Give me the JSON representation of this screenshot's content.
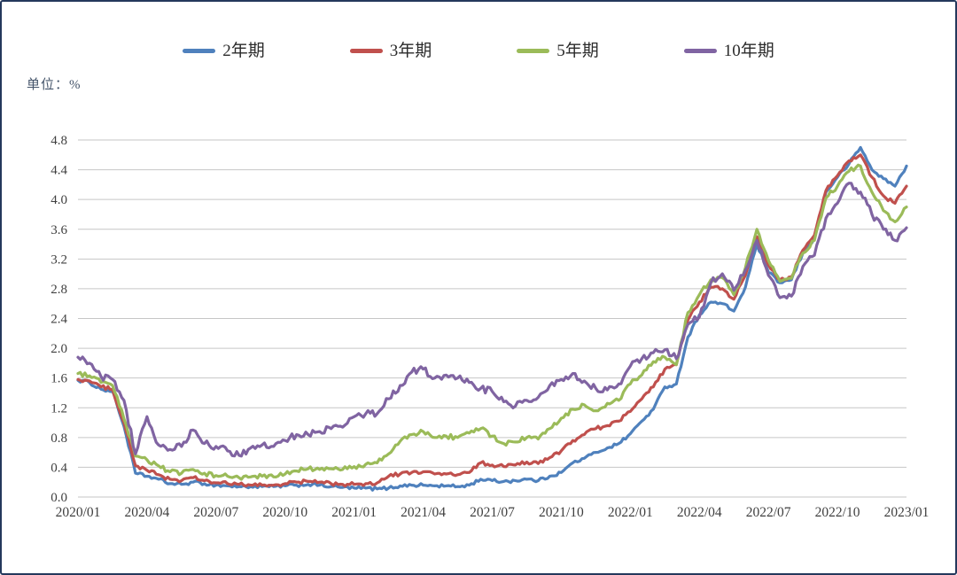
{
  "unit_label": "单位：%",
  "frame_border_color": "#24385c",
  "chart_data": {
    "type": "line",
    "title": "",
    "unit_annotation": "单位：%",
    "legend_position": "top",
    "grid": "horizontal",
    "x_unit": "months since 2020/01",
    "x_start": 0,
    "x_step": 0.5,
    "xlim": [
      0,
      36
    ],
    "ylim": [
      0,
      4.8
    ],
    "y_ticks": [
      0.0,
      0.4,
      0.8,
      1.2,
      1.6,
      2.0,
      2.4,
      2.8,
      3.2,
      3.6,
      4.0,
      4.4,
      4.8
    ],
    "x_tick_positions": [
      0,
      3,
      6,
      9,
      12,
      15,
      18,
      21,
      24,
      27,
      30,
      33,
      36
    ],
    "x_tick_labels": [
      "2020/01",
      "2020/04",
      "2020/07",
      "2020/10",
      "2021/01",
      "2021/04",
      "2021/07",
      "2021/10",
      "2022/01",
      "2022/04",
      "2022/07",
      "2022/10",
      "2023/01"
    ],
    "series": [
      {
        "name": "2年期",
        "color": "#4F81BD",
        "values": [
          1.57,
          1.54,
          1.45,
          1.42,
          0.95,
          0.32,
          0.28,
          0.24,
          0.18,
          0.17,
          0.2,
          0.18,
          0.16,
          0.15,
          0.14,
          0.14,
          0.14,
          0.14,
          0.15,
          0.16,
          0.17,
          0.16,
          0.14,
          0.13,
          0.12,
          0.12,
          0.11,
          0.12,
          0.15,
          0.16,
          0.16,
          0.15,
          0.15,
          0.14,
          0.16,
          0.24,
          0.22,
          0.21,
          0.22,
          0.24,
          0.22,
          0.28,
          0.33,
          0.46,
          0.52,
          0.6,
          0.66,
          0.72,
          0.85,
          1.02,
          1.18,
          1.48,
          1.52,
          2.15,
          2.45,
          2.62,
          2.6,
          2.5,
          2.82,
          3.4,
          3.02,
          2.88,
          2.92,
          3.28,
          3.48,
          4.1,
          4.3,
          4.48,
          4.7,
          4.4,
          4.28,
          4.18,
          4.45
        ]
      },
      {
        "name": "3年期",
        "color": "#C0504D",
        "values": [
          1.58,
          1.56,
          1.48,
          1.45,
          1.0,
          0.42,
          0.36,
          0.3,
          0.24,
          0.22,
          0.26,
          0.22,
          0.19,
          0.18,
          0.17,
          0.16,
          0.16,
          0.16,
          0.18,
          0.2,
          0.21,
          0.2,
          0.18,
          0.17,
          0.17,
          0.18,
          0.19,
          0.28,
          0.31,
          0.33,
          0.34,
          0.31,
          0.31,
          0.3,
          0.33,
          0.46,
          0.43,
          0.41,
          0.43,
          0.47,
          0.45,
          0.53,
          0.62,
          0.76,
          0.84,
          0.92,
          0.96,
          1.02,
          1.15,
          1.32,
          1.48,
          1.72,
          1.78,
          2.38,
          2.62,
          2.82,
          2.8,
          2.66,
          2.98,
          3.5,
          3.12,
          2.92,
          2.96,
          3.32,
          3.52,
          4.12,
          4.32,
          4.52,
          4.6,
          4.3,
          4.05,
          3.95,
          4.18
        ]
      },
      {
        "name": "5年期",
        "color": "#9BBB59",
        "values": [
          1.66,
          1.63,
          1.54,
          1.5,
          1.05,
          0.55,
          0.5,
          0.42,
          0.34,
          0.32,
          0.37,
          0.32,
          0.29,
          0.28,
          0.26,
          0.27,
          0.28,
          0.27,
          0.31,
          0.35,
          0.38,
          0.37,
          0.38,
          0.37,
          0.41,
          0.44,
          0.46,
          0.58,
          0.75,
          0.84,
          0.88,
          0.8,
          0.82,
          0.8,
          0.86,
          0.92,
          0.82,
          0.72,
          0.74,
          0.8,
          0.78,
          0.92,
          1.06,
          1.18,
          1.24,
          1.16,
          1.26,
          1.3,
          1.52,
          1.64,
          1.82,
          1.88,
          1.78,
          2.48,
          2.72,
          2.92,
          2.95,
          2.72,
          3.08,
          3.6,
          3.18,
          2.9,
          2.94,
          3.28,
          3.45,
          4.02,
          4.18,
          4.38,
          4.45,
          4.1,
          3.85,
          3.7,
          3.9
        ]
      },
      {
        "name": "10年期",
        "color": "#8064A2",
        "values": [
          1.88,
          1.8,
          1.62,
          1.58,
          1.3,
          0.58,
          1.08,
          0.7,
          0.64,
          0.68,
          0.9,
          0.72,
          0.68,
          0.62,
          0.56,
          0.66,
          0.7,
          0.68,
          0.76,
          0.84,
          0.84,
          0.88,
          0.92,
          0.94,
          1.08,
          1.12,
          1.12,
          1.32,
          1.5,
          1.68,
          1.72,
          1.6,
          1.64,
          1.6,
          1.54,
          1.46,
          1.42,
          1.28,
          1.22,
          1.3,
          1.34,
          1.5,
          1.58,
          1.66,
          1.56,
          1.46,
          1.44,
          1.52,
          1.76,
          1.86,
          1.94,
          1.98,
          1.86,
          2.32,
          2.42,
          2.88,
          3.0,
          2.78,
          3.05,
          3.45,
          2.98,
          2.68,
          2.7,
          3.1,
          3.25,
          3.75,
          3.95,
          4.22,
          4.1,
          3.8,
          3.6,
          3.45,
          3.62
        ]
      }
    ]
  }
}
